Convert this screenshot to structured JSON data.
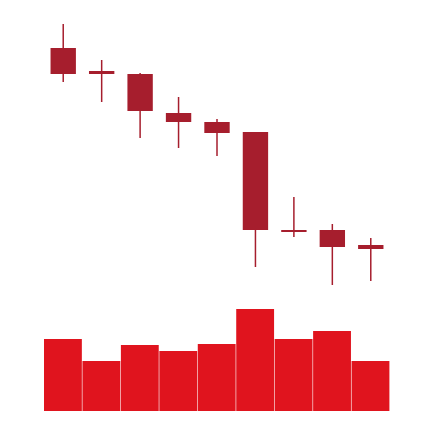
{
  "chart_data": {
    "type": "candlestick",
    "open": [
      252,
      229,
      226,
      187,
      178,
      168,
      70,
      70,
      55
    ],
    "high": [
      276,
      240,
      227,
      203,
      181,
      168,
      103,
      76,
      62
    ],
    "low": [
      218,
      198,
      162,
      152,
      144,
      33,
      63,
      15,
      19
    ],
    "close": [
      226,
      226,
      189,
      178,
      167,
      70,
      68,
      53,
      51
    ],
    "color": "#a61e2d",
    "ylim": [
      10,
      280
    ],
    "volume": {
      "values": [
        72,
        50,
        66,
        60,
        67,
        102,
        72,
        80,
        50
      ],
      "color": "#e0141e",
      "ylim": [
        0,
        110
      ]
    }
  }
}
